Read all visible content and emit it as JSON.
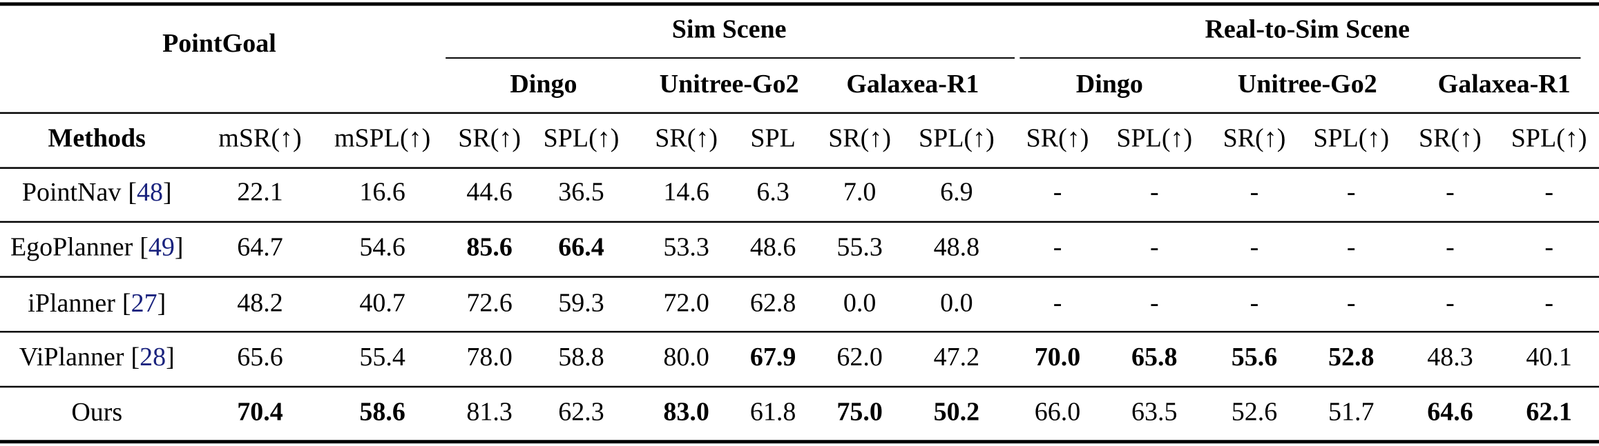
{
  "header": {
    "title": "PointGoal",
    "groups": [
      "Sim Scene",
      "Real-to-Sim Scene"
    ],
    "subgroups": [
      "Dingo",
      "Unitree-Go2",
      "Galaxea-R1",
      "Dingo",
      "Unitree-Go2",
      "Galaxea-R1"
    ],
    "columns": [
      "Methods",
      "mSR(↑)",
      "mSPL(↑)",
      "SR(↑)",
      "SPL(↑)",
      "SR(↑)",
      "SPL",
      "SR(↑)",
      "SPL(↑)",
      "SR(↑)",
      "SPL(↑)",
      "SR(↑)",
      "SPL(↑)",
      "SR(↑)",
      "SPL(↑)"
    ]
  },
  "table": {
    "rows": [
      {
        "method": "PointNav",
        "cite": {
          "open": "[",
          "number": "48",
          "close": "]"
        },
        "cells": [
          "22.1",
          "16.6",
          "44.6",
          "36.5",
          "14.6",
          "6.3",
          "7.0",
          "6.9",
          "-",
          "-",
          "-",
          "-",
          "-",
          "-"
        ],
        "bold": []
      },
      {
        "method": "EgoPlanner",
        "cite": {
          "open": "[",
          "number": "49",
          "close": "]"
        },
        "cells": [
          "64.7",
          "54.6",
          "85.6",
          "66.4",
          "53.3",
          "48.6",
          "55.3",
          "48.8",
          "-",
          "-",
          "-",
          "-",
          "-",
          "-"
        ],
        "bold": [
          2,
          3
        ]
      },
      {
        "method": "iPlanner",
        "cite": {
          "open": "[",
          "number": "27",
          "close": "]"
        },
        "cells": [
          "48.2",
          "40.7",
          "72.6",
          "59.3",
          "72.0",
          "62.8",
          "0.0",
          "0.0",
          "-",
          "-",
          "-",
          "-",
          "-",
          "-"
        ],
        "bold": []
      },
      {
        "method": "ViPlanner",
        "cite": {
          "open": "[",
          "number": "28",
          "close": "]"
        },
        "cells": [
          "65.6",
          "55.4",
          "78.0",
          "58.8",
          "80.0",
          "67.9",
          "62.0",
          "47.2",
          "70.0",
          "65.8",
          "55.6",
          "52.8",
          "48.3",
          "40.1"
        ],
        "bold": [
          5,
          8,
          9,
          10,
          11
        ]
      },
      {
        "method": "Ours",
        "cells": [
          "70.4",
          "58.6",
          "81.3",
          "62.3",
          "83.0",
          "61.8",
          "75.0",
          "50.2",
          "66.0",
          "63.5",
          "52.6",
          "51.7",
          "64.6",
          "62.1"
        ],
        "bold": [
          0,
          1,
          4,
          6,
          7,
          12,
          13
        ]
      }
    ]
  }
}
